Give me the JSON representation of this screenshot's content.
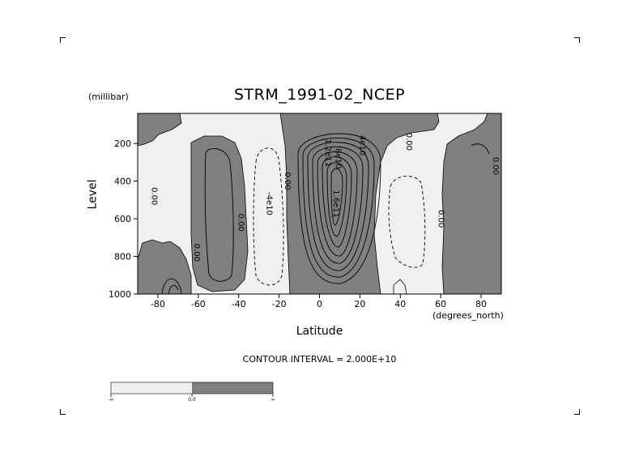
{
  "chart_data": {
    "type": "contour",
    "title": "STRM_1991-02_NCEP",
    "ylabel": "Level",
    "yunits": "(millibar)",
    "xlabel": "Latitude",
    "xunits": "(degrees_north)",
    "xlim": [
      -90,
      90
    ],
    "ylim": [
      1000,
      40
    ],
    "y_inverted": true,
    "xticks": [
      -80,
      -60,
      -40,
      -20,
      0,
      20,
      40,
      60,
      80
    ],
    "xtick_labels": [
      "-80",
      "-60",
      "-40",
      "-20",
      "0",
      "20",
      "40",
      "60",
      "80"
    ],
    "yticks": [
      200,
      400,
      600,
      800,
      1000
    ],
    "ytick_labels": [
      "200",
      "400",
      "600",
      "800",
      "1000"
    ],
    "contour_interval_text": "CONTOUR INTERVAL = 2.000E+10",
    "contour_interval": 20000000000,
    "shading": {
      "negative": "#f0f0f0",
      "positive": "#808080"
    },
    "contour_labels": [
      {
        "text": "0.00",
        "x": -83,
        "y": 480
      },
      {
        "text": "0.00",
        "x": -62,
        "y": 780
      },
      {
        "text": "0.00",
        "x": -40,
        "y": 620
      },
      {
        "text": "-4e10",
        "x": -26,
        "y": 520
      },
      {
        "text": "0.00",
        "x": -17,
        "y": 400
      },
      {
        "text": "1.2e11",
        "x": 3,
        "y": 250
      },
      {
        "text": "8e10",
        "x": 8,
        "y": 280
      },
      {
        "text": "4e10",
        "x": 20,
        "y": 210
      },
      {
        "text": "1.6e11",
        "x": 7,
        "y": 520
      },
      {
        "text": "0.00",
        "x": 43,
        "y": 190
      },
      {
        "text": "0.00",
        "x": 59,
        "y": 600
      },
      {
        "text": "0.00",
        "x": 86,
        "y": 320
      }
    ],
    "colorbar": {
      "labels": [
        "-∞",
        "0.0",
        "∞"
      ],
      "colors": [
        "#f0f0f0",
        "#808080"
      ]
    }
  }
}
